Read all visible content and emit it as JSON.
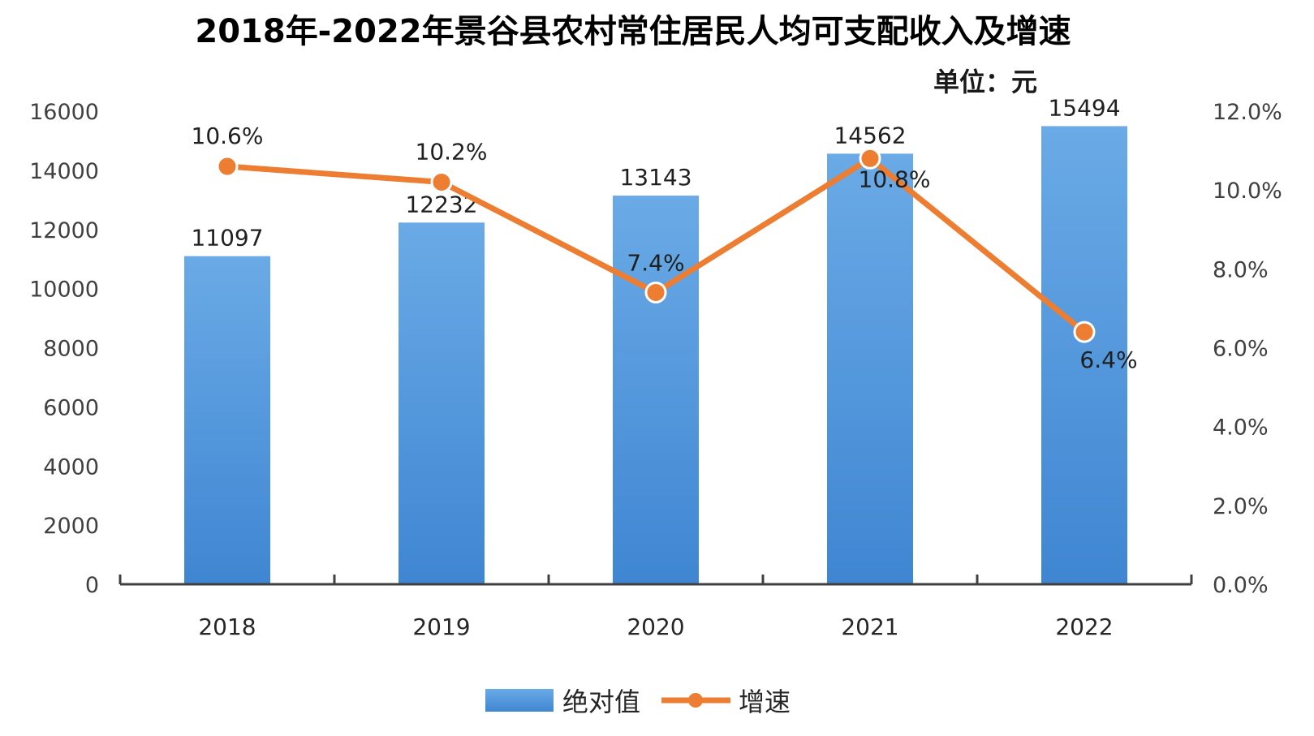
{
  "chart_data": {
    "type": "bar",
    "title": "2018年-2022年景谷县农村常住居民人均可支配收入及增速",
    "unit_label": "单位：元",
    "categories": [
      "2018",
      "2019",
      "2020",
      "2021",
      "2022"
    ],
    "series": [
      {
        "name": "绝对值",
        "type": "bar",
        "axis": "left",
        "values": [
          11097,
          12232,
          13143,
          14562,
          15494
        ],
        "labels": [
          "11097",
          "12232",
          "13143",
          "14562",
          "15494"
        ]
      },
      {
        "name": "增速",
        "type": "line",
        "axis": "right",
        "values": [
          10.6,
          10.2,
          7.4,
          10.8,
          6.4
        ],
        "labels": [
          "10.6%",
          "10.2%",
          "7.4%",
          "10.8%",
          "6.4%"
        ]
      }
    ],
    "y_left": {
      "range": [
        0,
        16000
      ],
      "ticks": [
        0,
        2000,
        4000,
        6000,
        8000,
        10000,
        12000,
        14000,
        16000
      ],
      "tick_labels": [
        "0",
        "2000",
        "4000",
        "6000",
        "8000",
        "10000",
        "12000",
        "14000",
        "16000"
      ]
    },
    "y_right": {
      "range": [
        0,
        12
      ],
      "ticks": [
        0,
        2,
        4,
        6,
        8,
        10,
        12
      ],
      "tick_labels": [
        "0.0%",
        "2.0%",
        "4.0%",
        "6.0%",
        "8.0%",
        "10.0%",
        "12.0%"
      ]
    },
    "grid": false,
    "legend_position": "bottom",
    "colors": {
      "bar": "#4a90d9",
      "bar_light": "#6aaae6",
      "line": "#ed7d31",
      "marker_stroke": "#ffffff",
      "axis": "#404040"
    }
  }
}
